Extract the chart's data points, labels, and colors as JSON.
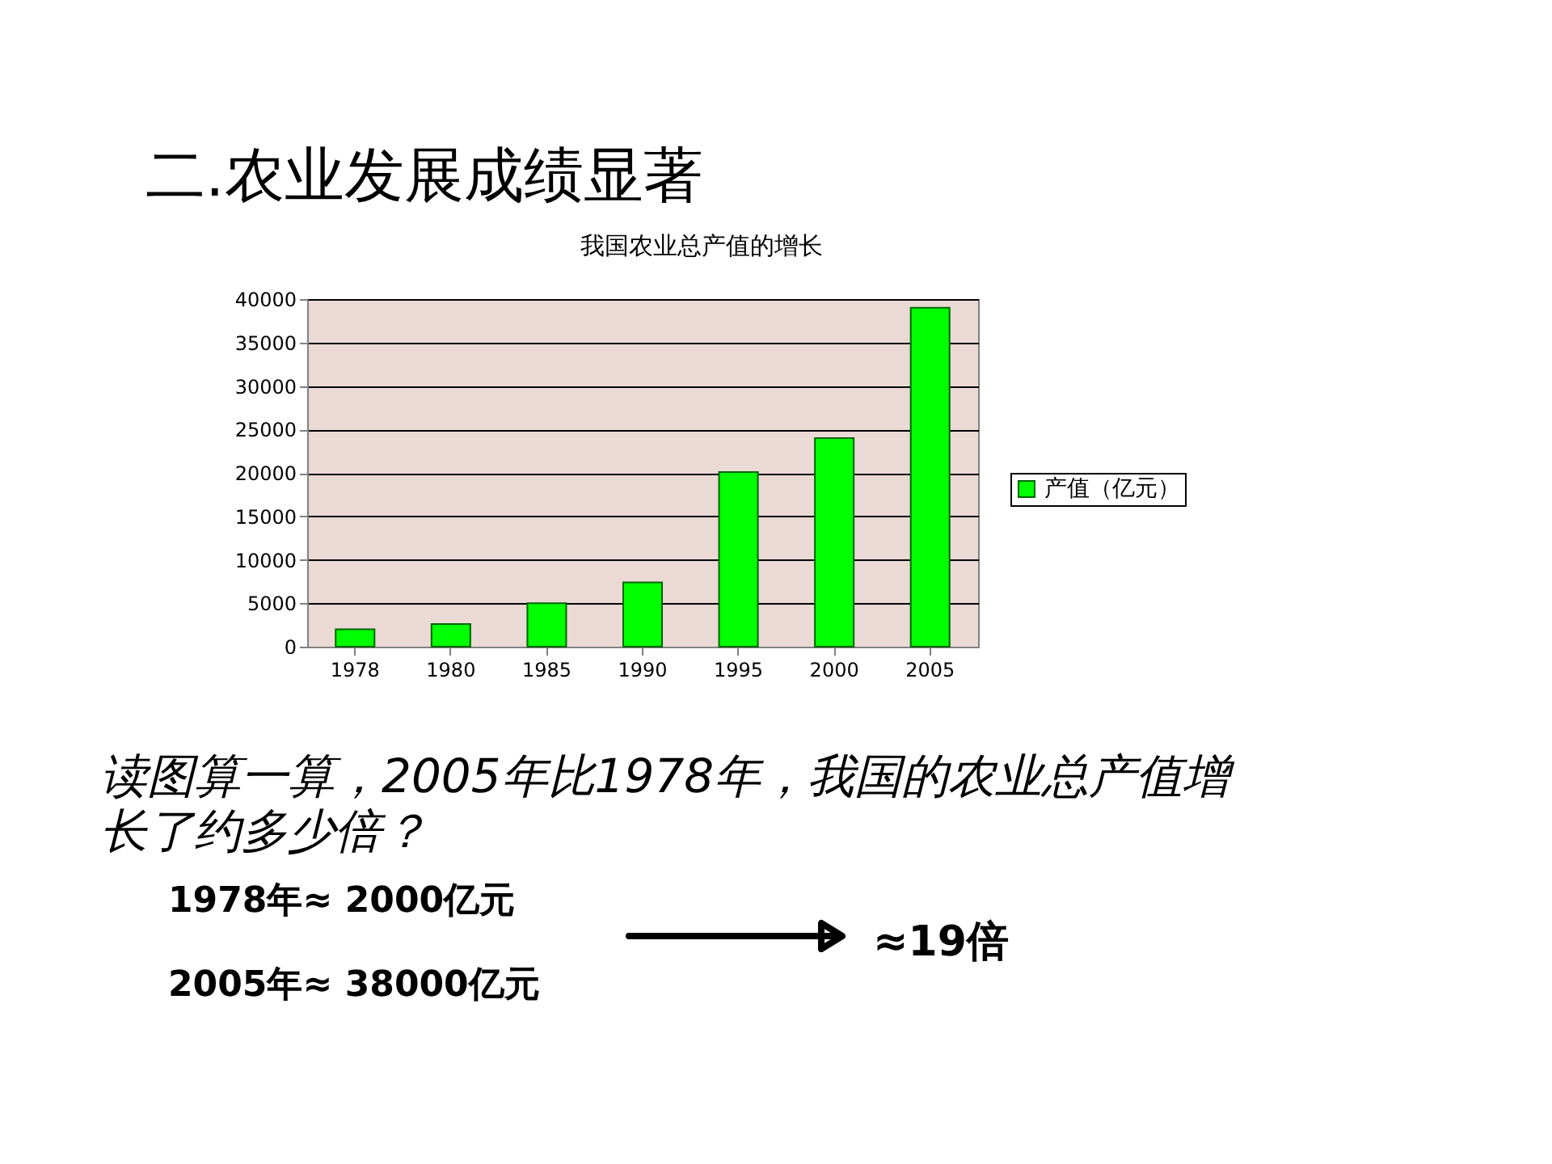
{
  "chart_data": {
    "type": "bar",
    "title": "二.农业发展成绩显著",
    "subtitle": "我国农业总产值的增长",
    "categories": [
      "1978",
      "1980",
      "1985",
      "1990",
      "1995",
      "2000",
      "2005"
    ],
    "series": [
      {
        "name": "产值（亿元）",
        "color": "#00ff00",
        "values": [
          2000,
          2600,
          5000,
          7400,
          20100,
          24000,
          39000
        ]
      }
    ],
    "ylim": [
      0,
      40000
    ],
    "yticks": [
      0,
      5000,
      10000,
      15000,
      20000,
      25000,
      30000,
      35000,
      40000
    ],
    "grid": "y",
    "legend": "right",
    "annotations": [
      "读图算一算，2005年比1978年，我国的农业总产值增长了约多少倍？",
      "1978年≈ 2000亿元",
      "2005年≈ 38000亿元",
      "≈19倍"
    ]
  }
}
